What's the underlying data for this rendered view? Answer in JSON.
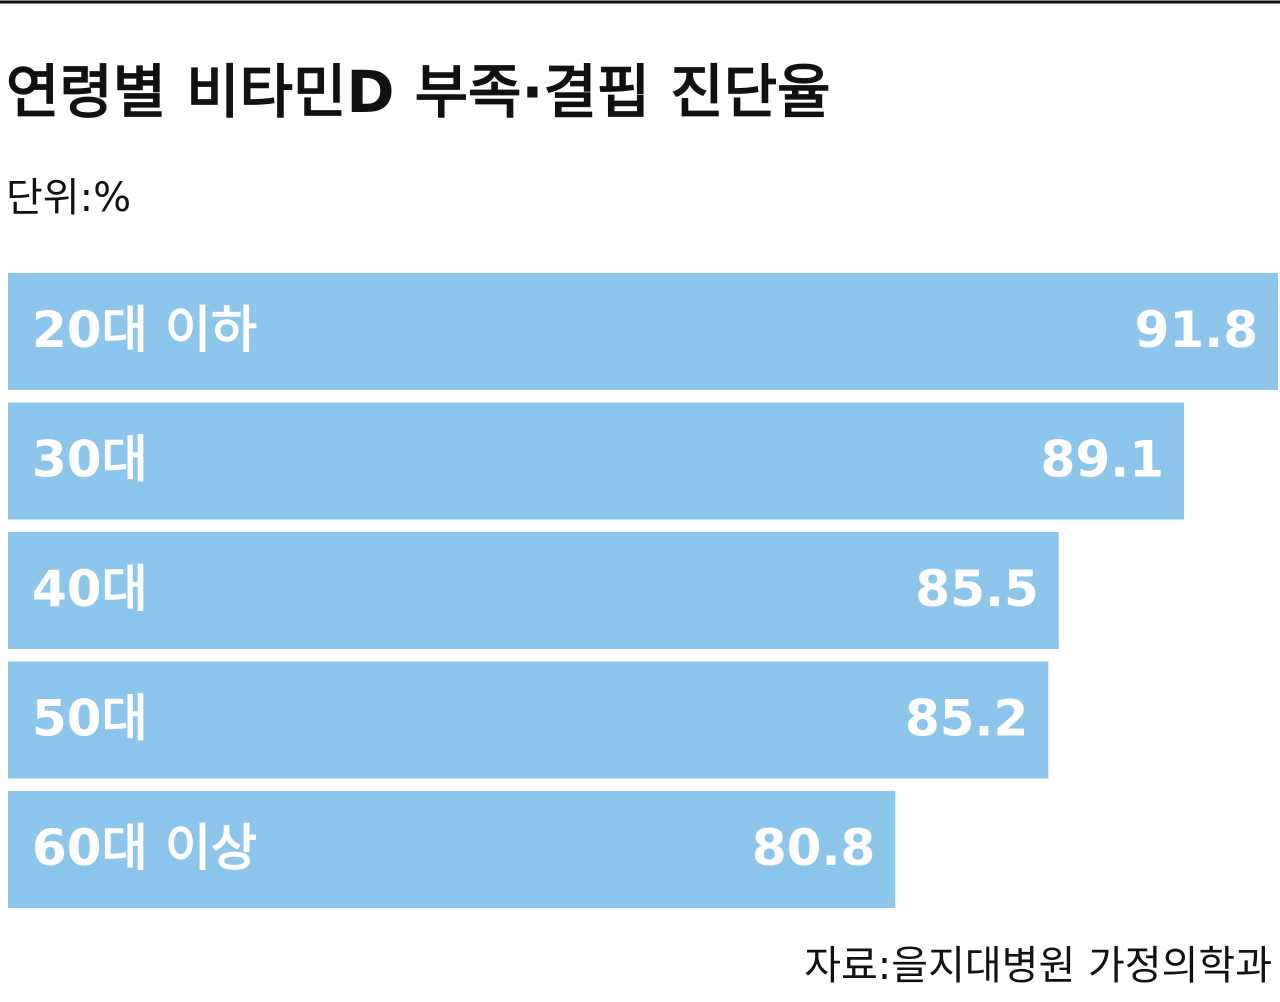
{
  "chart_data": {
    "type": "bar",
    "orientation": "horizontal",
    "title": "연령별 비타민D 부족·결핍 진단율",
    "subtitle": "단위:%",
    "source": "자료:을지대병원 가정의학과",
    "categories": [
      "20대 이하",
      "30대",
      "40대",
      "50대",
      "60대 이상"
    ],
    "values": [
      91.8,
      89.1,
      85.5,
      85.2,
      80.8
    ],
    "color": "#8dc6ec",
    "xlim": [
      55.3,
      91.8
    ]
  }
}
